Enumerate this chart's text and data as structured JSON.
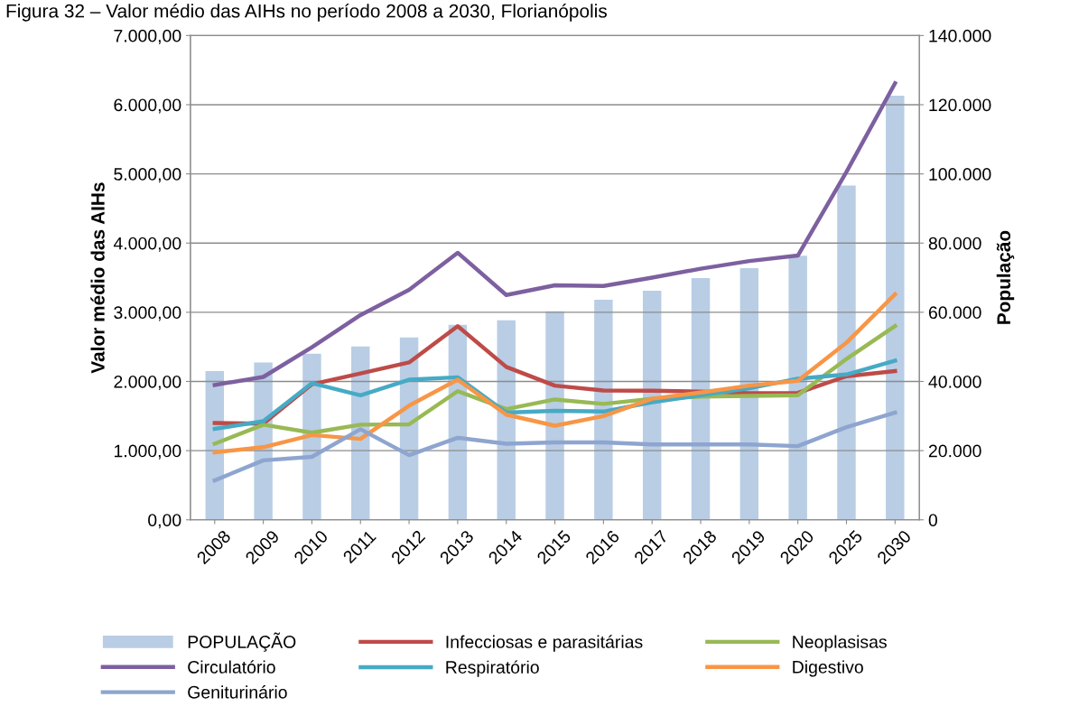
{
  "chart_data": {
    "type": "line",
    "title": "Figura 32 – Valor médio das AIHs no período 2008 a 2030, Florianópolis",
    "ylabel": "Valor médio das AIHs",
    "y2label": "População",
    "categories": [
      "2008",
      "2009",
      "2010",
      "2011",
      "2012",
      "2013",
      "2014",
      "2015",
      "2016",
      "2017",
      "2018",
      "2019",
      "2020",
      "2025",
      "2030"
    ],
    "series": [
      {
        "name": "POPULAÇÃO",
        "type": "bar",
        "axis": "y2",
        "color": "#b9cde5",
        "values": [
          43000,
          45450,
          48050,
          50130,
          52730,
          56360,
          57660,
          60260,
          63640,
          66230,
          69870,
          72730,
          76370,
          96620,
          122600
        ]
      },
      {
        "name": "Infecciosas e parasitárias",
        "color": "#be4b48",
        "values": [
          1400,
          1390,
          1960,
          2115,
          2275,
          2800,
          2210,
          1940,
          1870,
          1865,
          1855,
          1830,
          1835,
          2075,
          2150
        ]
      },
      {
        "name": "Neoplasisas",
        "color": "#98b954",
        "values": [
          1100,
          1375,
          1260,
          1375,
          1380,
          1860,
          1600,
          1740,
          1675,
          1750,
          1780,
          1790,
          1800,
          2325,
          2800
        ]
      },
      {
        "name": "Circulatório",
        "color": "#7d60a0",
        "values": [
          1950,
          2065,
          2495,
          2960,
          3325,
          3860,
          3250,
          3390,
          3380,
          3500,
          3630,
          3740,
          3820,
          5030,
          6310
        ]
      },
      {
        "name": "Respiratório",
        "color": "#46aac5",
        "values": [
          1315,
          1425,
          1975,
          1800,
          2025,
          2060,
          1550,
          1575,
          1565,
          1700,
          1800,
          1900,
          2040,
          2100,
          2300
        ]
      },
      {
        "name": "Digestivo",
        "color": "#f79646",
        "values": [
          975,
          1050,
          1225,
          1170,
          1650,
          2025,
          1520,
          1360,
          1500,
          1750,
          1840,
          1940,
          2010,
          2560,
          3260
        ]
      },
      {
        "name": "Geniturinário",
        "color": "#8ea5cf",
        "values": [
          570,
          860,
          910,
          1310,
          935,
          1185,
          1100,
          1120,
          1120,
          1090,
          1090,
          1090,
          1065,
          1340,
          1550
        ]
      }
    ],
    "ylim": [
      0,
      7000
    ],
    "yticks": [
      {
        "value": 0,
        "label": "0,00"
      },
      {
        "value": 1000,
        "label": "1.000,00"
      },
      {
        "value": 2000,
        "label": "2.000,00"
      },
      {
        "value": 3000,
        "label": "3.000,00"
      },
      {
        "value": 4000,
        "label": "4.000,00"
      },
      {
        "value": 5000,
        "label": "5.000,00"
      },
      {
        "value": 6000,
        "label": "6.000,00"
      },
      {
        "value": 7000,
        "label": "7.000,00"
      }
    ],
    "y2lim": [
      0,
      140000
    ],
    "y2ticks": [
      0,
      {
        "value": 20000,
        "label": "20.000"
      },
      {
        "value": 40000,
        "label": "40.000"
      },
      {
        "value": 60000,
        "label": "60.000"
      },
      {
        "value": 80000,
        "label": "80.000"
      },
      {
        "value": 100000,
        "label": "100.000"
      },
      {
        "value": 120000,
        "label": "120.000"
      },
      {
        "value": 140000,
        "label": "140.000"
      }
    ],
    "grid": "y",
    "legend": "bottom",
    "marker": "none",
    "line_style": "solid"
  }
}
